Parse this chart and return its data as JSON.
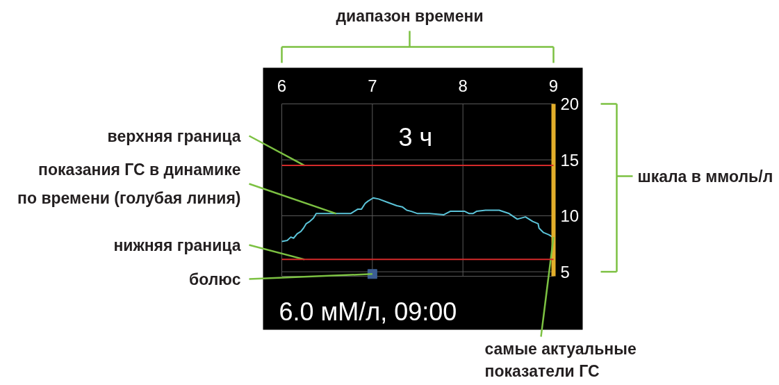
{
  "chart_data": {
    "type": "line",
    "xlim": [
      6,
      9
    ],
    "ylim": [
      4.6,
      20
    ],
    "xticks": [
      6,
      7,
      8,
      9
    ],
    "yticks": [
      5,
      10,
      15,
      20
    ],
    "grid": true,
    "series": [
      {
        "color": "#5bc4d9",
        "x": [
          6.0,
          6.06,
          6.1,
          6.13,
          6.17,
          6.21,
          6.24,
          6.27,
          6.31,
          6.35,
          6.38,
          6.56,
          6.76,
          6.8,
          6.84,
          6.88,
          6.92,
          6.95,
          7.01,
          7.07,
          7.17,
          7.27,
          7.33,
          7.38,
          7.43,
          7.5,
          7.63,
          7.79,
          7.86,
          7.94,
          8.02,
          8.07,
          8.11,
          8.15,
          8.25,
          8.35,
          8.4,
          8.51,
          8.6,
          8.69,
          8.77,
          8.83,
          8.84,
          8.89,
          8.95,
          8.99
        ],
        "values": [
          7.7,
          7.8,
          8.1,
          8.0,
          8.4,
          8.6,
          8.9,
          9.3,
          9.5,
          9.8,
          10.2,
          10.2,
          10.2,
          10.4,
          10.6,
          10.6,
          11.1,
          11.3,
          11.6,
          11.5,
          11.2,
          10.9,
          10.8,
          10.5,
          10.4,
          10.2,
          10.2,
          10.1,
          10.4,
          10.4,
          10.4,
          10.2,
          10.2,
          10.4,
          10.5,
          10.5,
          10.5,
          10.2,
          9.7,
          9.9,
          9.5,
          9.3,
          8.9,
          8.5,
          8.3,
          8.1
        ]
      },
      {
        "type": "scatter",
        "marker": "square",
        "color": "#3c5e93",
        "x": [
          7
        ],
        "values": [
          4.8
        ]
      }
    ],
    "ref_lines": [
      {
        "axis": "y",
        "value": 14.5,
        "color": "#d42a2a"
      },
      {
        "axis": "y",
        "value": 6.1,
        "color": "#d42a2a"
      }
    ],
    "annotations": [
      "диапазон времени",
      {
        "text": "верхняя граница",
        "x": 6.25,
        "y": 14.5
      },
      {
        "text": "показания ГС в динамике по времени (голубая линия)",
        "x": 6.6,
        "y": 10.2
      },
      {
        "text": "нижняя граница",
        "x": 6.25,
        "y": 6.1
      },
      {
        "text": "болюс",
        "x": 7,
        "y": 4.8
      },
      {
        "text": "самые актуальные показатели ГС",
        "x": 9,
        "y": 8.1
      },
      "шкала в ммоль/л",
      "3 ч",
      "6.0 мМ/л, 09:00"
    ]
  }
}
